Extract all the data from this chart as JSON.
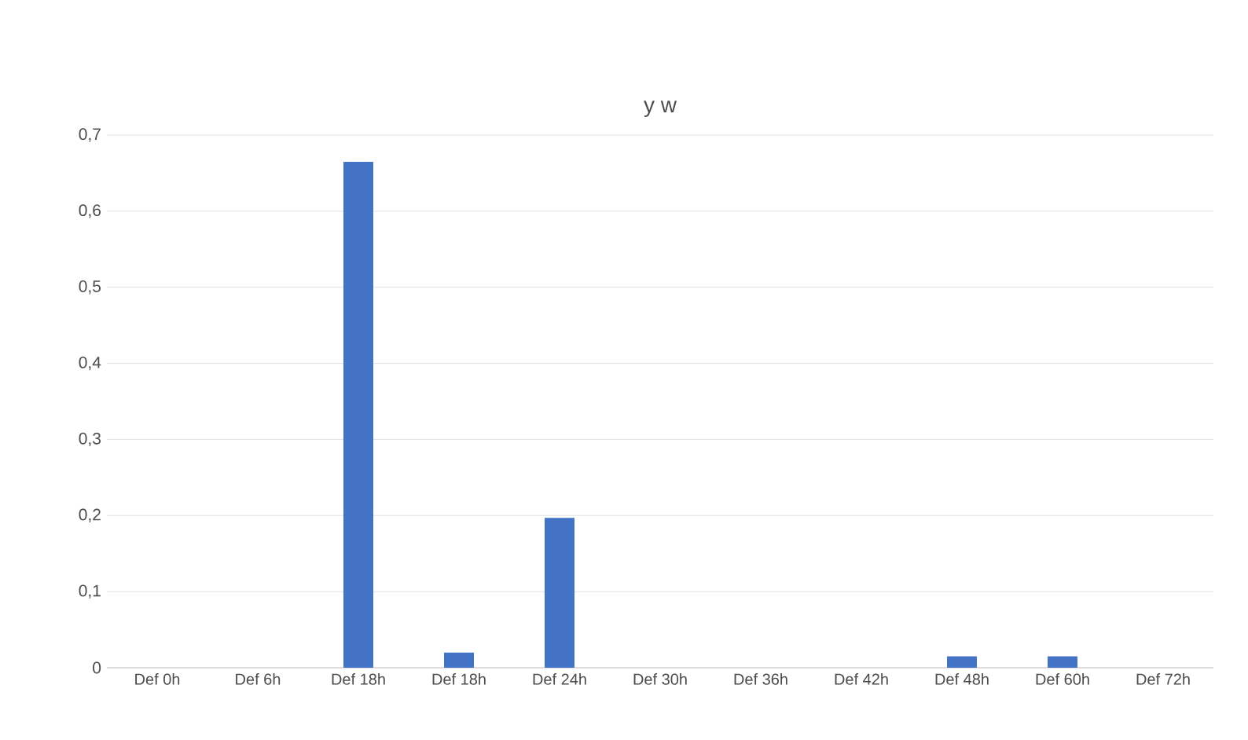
{
  "chart_data": {
    "type": "bar",
    "title": "y w",
    "categories": [
      "Def 0h",
      "Def 6h",
      "Def 18h",
      "Def 18h",
      "Def 24h",
      "Def 30h",
      "Def 36h",
      "Def 42h",
      "Def 48h",
      "Def 60h",
      "Def 72h"
    ],
    "values": [
      0,
      0,
      0.665,
      0.02,
      0.197,
      0,
      0,
      0,
      0.015,
      0.015,
      0
    ],
    "color": "#4472c4",
    "ylim": [
      0,
      0.7
    ],
    "yticks": [
      0,
      {
        "value": 0.1,
        "label": "0,1"
      },
      {
        "value": 0.2,
        "label": "0,2"
      },
      {
        "value": 0.3,
        "label": "0,3"
      },
      {
        "value": 0.4,
        "label": "0,4"
      },
      {
        "value": 0.5,
        "label": "0,5"
      },
      {
        "value": 0.6,
        "label": "0,6"
      },
      {
        "value": 0.7,
        "label": "0,7"
      }
    ],
    "grid": "y"
  }
}
